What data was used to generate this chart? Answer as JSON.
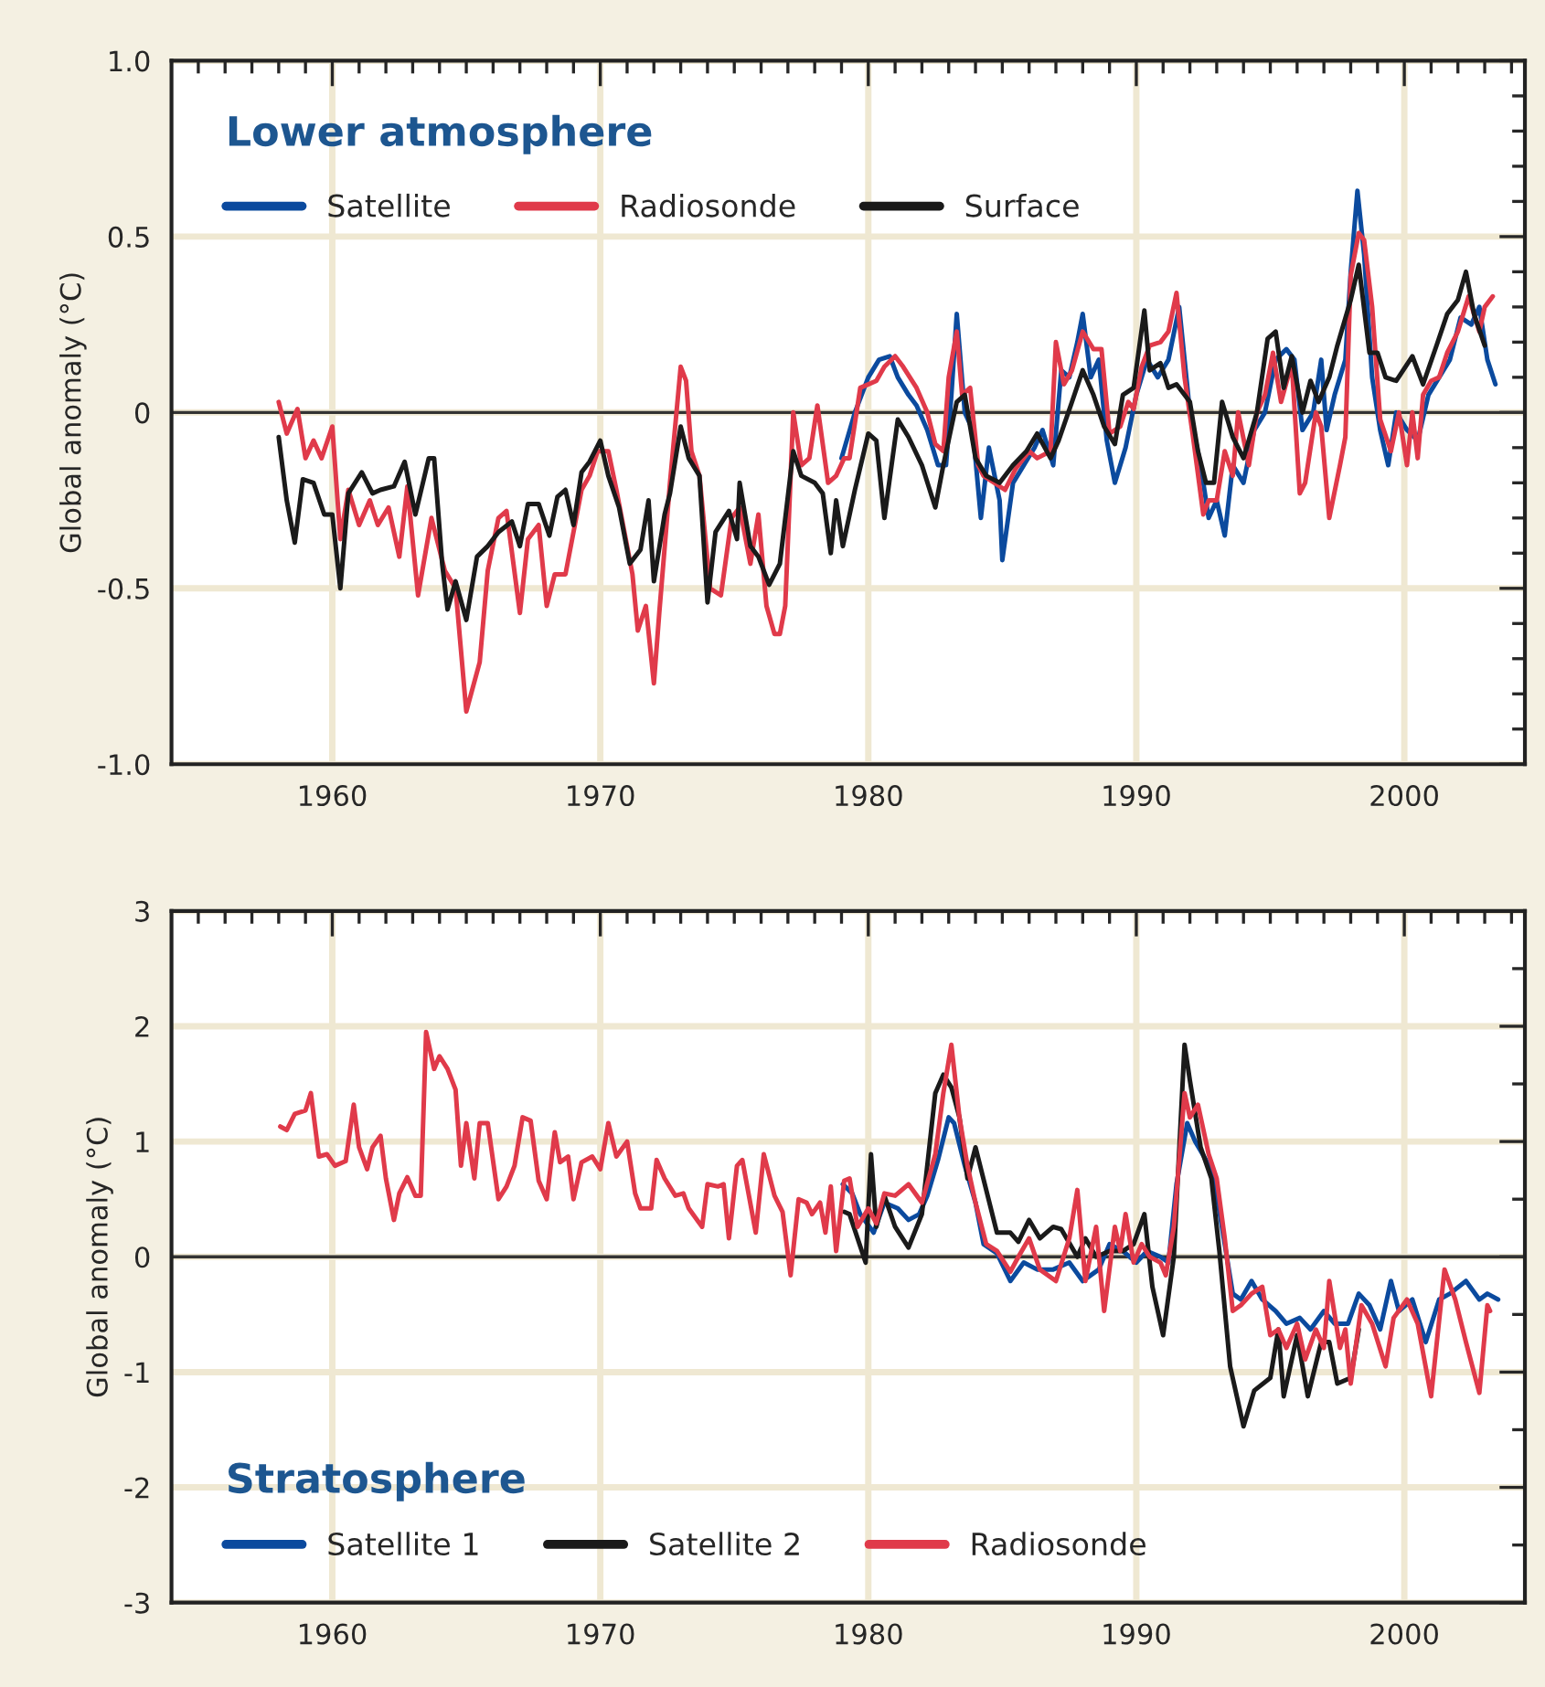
{
  "chart_data": [
    {
      "type": "line",
      "title": "Lower atmosphere",
      "ylabel": "Global anomaly (°C)",
      "legend": "top left",
      "grid": true,
      "marker": "none",
      "line_style": "solid",
      "xlim": [
        1954,
        2004.5
      ],
      "ylim": [
        -1.0,
        1.0
      ],
      "xticks": [
        {
          "value": 1955,
          "label": null
        },
        {
          "value": 1956,
          "label": null
        },
        {
          "value": 1957,
          "label": null
        },
        {
          "value": 1958,
          "label": null
        },
        {
          "value": 1959,
          "label": null
        },
        {
          "value": 1960,
          "label": "1960"
        },
        {
          "value": 1961,
          "label": null
        },
        {
          "value": 1962,
          "label": null
        },
        {
          "value": 1963,
          "label": null
        },
        {
          "value": 1964,
          "label": null
        },
        {
          "value": 1965,
          "label": null
        },
        {
          "value": 1966,
          "label": null
        },
        {
          "value": 1967,
          "label": null
        },
        {
          "value": 1968,
          "label": null
        },
        {
          "value": 1969,
          "label": null
        },
        {
          "value": 1970,
          "label": "1970"
        },
        {
          "value": 1971,
          "label": null
        },
        {
          "value": 1972,
          "label": null
        },
        {
          "value": 1973,
          "label": null
        },
        {
          "value": 1974,
          "label": null
        },
        {
          "value": 1975,
          "label": null
        },
        {
          "value": 1976,
          "label": null
        },
        {
          "value": 1977,
          "label": null
        },
        {
          "value": 1978,
          "label": null
        },
        {
          "value": 1979,
          "label": null
        },
        {
          "value": 1980,
          "label": "1980"
        },
        {
          "value": 1981,
          "label": null
        },
        {
          "value": 1982,
          "label": null
        },
        {
          "value": 1983,
          "label": null
        },
        {
          "value": 1984,
          "label": null
        },
        {
          "value": 1985,
          "label": null
        },
        {
          "value": 1986,
          "label": null
        },
        {
          "value": 1987,
          "label": null
        },
        {
          "value": 1988,
          "label": null
        },
        {
          "value": 1989,
          "label": null
        },
        {
          "value": 1990,
          "label": "1990"
        },
        {
          "value": 1991,
          "label": null
        },
        {
          "value": 1992,
          "label": null
        },
        {
          "value": 1993,
          "label": null
        },
        {
          "value": 1994,
          "label": null
        },
        {
          "value": 1995,
          "label": null
        },
        {
          "value": 1996,
          "label": null
        },
        {
          "value": 1997,
          "label": null
        },
        {
          "value": 1998,
          "label": null
        },
        {
          "value": 1999,
          "label": null
        },
        {
          "value": 2000,
          "label": "2000"
        },
        {
          "value": 2001,
          "label": null
        },
        {
          "value": 2002,
          "label": null
        },
        {
          "value": 2003,
          "label": null
        },
        {
          "value": 2004,
          "label": null
        }
      ],
      "yticks": [
        {
          "value": -1.0,
          "label": "-1.0"
        },
        {
          "value": -0.9,
          "label": null
        },
        {
          "value": -0.8,
          "label": null
        },
        {
          "value": -0.7,
          "label": null
        },
        {
          "value": -0.6,
          "label": null
        },
        {
          "value": -0.5,
          "label": "-0.5"
        },
        {
          "value": -0.4,
          "label": null
        },
        {
          "value": -0.3,
          "label": null
        },
        {
          "value": -0.2,
          "label": null
        },
        {
          "value": -0.1,
          "label": null
        },
        {
          "value": 0,
          "label": "0"
        },
        {
          "value": 0.1,
          "label": null
        },
        {
          "value": 0.2,
          "label": null
        },
        {
          "value": 0.3,
          "label": null
        },
        {
          "value": 0.4,
          "label": null
        },
        {
          "value": 0.5,
          "label": "0.5"
        },
        {
          "value": 0.6,
          "label": null
        },
        {
          "value": 0.7,
          "label": null
        },
        {
          "value": 0.8,
          "label": null
        },
        {
          "value": 0.9,
          "label": null
        },
        {
          "value": 1.0,
          "label": "1.0"
        }
      ],
      "ref_lines": [
        {
          "axis": "y",
          "value": 0,
          "color": "#333333",
          "line_style": "solid"
        }
      ],
      "series": [
        {
          "name": "Satellite",
          "color": "#0b4a9e",
          "x": [
            1979.0,
            1979.5,
            1980.0,
            1980.4,
            1980.8,
            1981.1,
            1981.5,
            1981.8,
            1982.2,
            1982.6,
            1982.9,
            1983.1,
            1983.3,
            1983.6,
            1983.9,
            1984.2,
            1984.5,
            1984.9,
            1985.0,
            1985.4,
            1985.8,
            1986.2,
            1986.5,
            1986.9,
            1987.2,
            1987.5,
            1987.8,
            1988.0,
            1988.3,
            1988.6,
            1988.9,
            1989.2,
            1989.6,
            1990.0,
            1990.4,
            1990.8,
            1991.2,
            1991.6,
            1992.0,
            1992.4,
            1992.7,
            1993.0,
            1993.3,
            1993.6,
            1994.0,
            1994.4,
            1994.8,
            1995.2,
            1995.6,
            1995.9,
            1996.2,
            1996.6,
            1996.9,
            1997.1,
            1997.4,
            1997.8,
            1998.0,
            1998.25,
            1998.5,
            1998.8,
            1999.1,
            1999.4,
            1999.7,
            2000.1,
            2000.5,
            2000.9,
            2001.3,
            2001.7,
            2002.1,
            2002.5,
            2002.8,
            2003.1,
            2003.4
          ],
          "values": [
            -0.13,
            0.0,
            0.1,
            0.15,
            0.16,
            0.1,
            0.05,
            0.02,
            -0.05,
            -0.15,
            -0.15,
            0.05,
            0.28,
            0.0,
            -0.05,
            -0.3,
            -0.1,
            -0.25,
            -0.42,
            -0.2,
            -0.15,
            -0.1,
            -0.05,
            -0.15,
            0.12,
            0.1,
            0.2,
            0.28,
            0.1,
            0.15,
            -0.08,
            -0.2,
            -0.1,
            0.05,
            0.15,
            0.1,
            0.15,
            0.3,
            0.0,
            -0.15,
            -0.3,
            -0.25,
            -0.35,
            -0.15,
            -0.2,
            -0.05,
            0.0,
            0.15,
            0.18,
            0.15,
            -0.05,
            0.0,
            0.15,
            -0.05,
            0.05,
            0.15,
            0.4,
            0.63,
            0.45,
            0.1,
            -0.05,
            -0.15,
            0.0,
            -0.05,
            -0.08,
            0.05,
            0.1,
            0.15,
            0.27,
            0.25,
            0.3,
            0.15,
            0.08
          ]
        },
        {
          "name": "Radiosonde",
          "color": "#e03a4a",
          "x": [
            1958.0,
            1958.3,
            1958.7,
            1959.0,
            1959.3,
            1959.6,
            1960.0,
            1960.3,
            1960.6,
            1961.0,
            1961.4,
            1961.7,
            1962.1,
            1962.5,
            1962.8,
            1963.2,
            1963.7,
            1964.2,
            1964.6,
            1965.0,
            1965.5,
            1965.8,
            1966.2,
            1966.5,
            1967.0,
            1967.3,
            1967.7,
            1968.0,
            1968.3,
            1968.7,
            1969.3,
            1969.6,
            1969.9,
            1970.3,
            1970.6,
            1971.2,
            1971.4,
            1971.7,
            1972.0,
            1972.2,
            1972.6,
            1973.0,
            1973.2,
            1973.4,
            1973.7,
            1974.1,
            1974.5,
            1974.9,
            1975.2,
            1975.6,
            1975.9,
            1976.2,
            1976.5,
            1976.7,
            1976.9,
            1977.2,
            1977.5,
            1977.8,
            1978.1,
            1978.5,
            1978.8,
            1979.1,
            1979.3,
            1979.7,
            1980.3,
            1980.6,
            1981.0,
            1981.3,
            1981.8,
            1982.2,
            1982.5,
            1982.8,
            1983.0,
            1983.3,
            1983.5,
            1983.8,
            1984.1,
            1984.3,
            1985.1,
            1985.5,
            1986.0,
            1986.3,
            1986.8,
            1987.0,
            1987.3,
            1987.6,
            1988.0,
            1988.4,
            1988.7,
            1989.0,
            1989.4,
            1989.7,
            1989.9,
            1990.2,
            1990.5,
            1990.9,
            1991.2,
            1991.5,
            1991.8,
            1992.1,
            1992.5,
            1992.7,
            1993.0,
            1993.3,
            1993.6,
            1993.8,
            1994.2,
            1994.5,
            1994.8,
            1995.1,
            1995.4,
            1995.8,
            1996.1,
            1996.3,
            1996.7,
            1996.9,
            1997.2,
            1997.6,
            1997.8,
            1998.0,
            1998.3,
            1998.5,
            1998.8,
            1999.1,
            1999.5,
            1999.8,
            2000.1,
            2000.3,
            2000.5,
            2000.7,
            2001.0,
            2001.3,
            2001.6,
            2002.0,
            2002.4,
            2002.8,
            2003.0,
            2003.3
          ],
          "values": [
            0.03,
            -0.06,
            0.01,
            -0.13,
            -0.08,
            -0.13,
            -0.04,
            -0.36,
            -0.22,
            -0.32,
            -0.25,
            -0.32,
            -0.27,
            -0.41,
            -0.21,
            -0.52,
            -0.3,
            -0.45,
            -0.5,
            -0.85,
            -0.71,
            -0.45,
            -0.3,
            -0.28,
            -0.57,
            -0.36,
            -0.32,
            -0.55,
            -0.46,
            -0.46,
            -0.22,
            -0.18,
            -0.11,
            -0.11,
            -0.22,
            -0.46,
            -0.62,
            -0.55,
            -0.77,
            -0.57,
            -0.2,
            0.13,
            0.09,
            -0.11,
            -0.18,
            -0.5,
            -0.52,
            -0.3,
            -0.27,
            -0.43,
            -0.29,
            -0.55,
            -0.63,
            -0.63,
            -0.55,
            0.0,
            -0.15,
            -0.13,
            0.02,
            -0.2,
            -0.18,
            -0.13,
            -0.13,
            0.07,
            0.09,
            0.13,
            0.16,
            0.13,
            0.07,
            0.0,
            -0.09,
            -0.11,
            0.1,
            0.23,
            0.05,
            0.07,
            -0.15,
            -0.18,
            -0.22,
            -0.16,
            -0.11,
            -0.13,
            -0.11,
            0.2,
            0.08,
            0.12,
            0.23,
            0.18,
            0.18,
            -0.06,
            -0.04,
            0.03,
            0.01,
            0.13,
            0.19,
            0.2,
            0.23,
            0.34,
            0.1,
            -0.06,
            -0.29,
            -0.25,
            -0.25,
            -0.11,
            -0.18,
            0.0,
            -0.15,
            0.0,
            0.05,
            0.17,
            0.03,
            0.14,
            -0.23,
            -0.2,
            0.0,
            -0.04,
            -0.3,
            -0.15,
            -0.07,
            0.39,
            0.51,
            0.49,
            0.3,
            -0.02,
            -0.11,
            0.0,
            -0.15,
            0.0,
            -0.13,
            0.05,
            0.09,
            0.1,
            0.17,
            0.23,
            0.33,
            0.23,
            0.3,
            0.33
          ]
        },
        {
          "name": "Surface",
          "color": "#1a1a1a",
          "x": [
            1958.0,
            1958.3,
            1958.6,
            1958.9,
            1959.3,
            1959.7,
            1960.0,
            1960.3,
            1960.6,
            1961.1,
            1961.5,
            1961.8,
            1962.3,
            1962.7,
            1963.1,
            1963.6,
            1963.8,
            1964.1,
            1964.3,
            1964.6,
            1965.0,
            1965.4,
            1965.8,
            1966.2,
            1966.7,
            1967.0,
            1967.3,
            1967.7,
            1968.1,
            1968.4,
            1968.7,
            1969.0,
            1969.3,
            1969.6,
            1970.0,
            1970.3,
            1970.7,
            1971.1,
            1971.5,
            1971.8,
            1972.0,
            1972.4,
            1972.6,
            1973.0,
            1973.3,
            1973.7,
            1974.0,
            1974.3,
            1974.8,
            1975.1,
            1975.2,
            1975.6,
            1975.9,
            1976.3,
            1976.7,
            1977.2,
            1977.5,
            1978.0,
            1978.3,
            1978.6,
            1978.8,
            1979.05,
            1979.5,
            1980.0,
            1980.3,
            1980.6,
            1981.1,
            1981.5,
            1982.0,
            1982.5,
            1982.8,
            1983.3,
            1983.6,
            1984.0,
            1984.4,
            1984.9,
            1985.4,
            1985.9,
            1986.3,
            1986.8,
            1987.1,
            1987.6,
            1988.0,
            1988.4,
            1988.8,
            1989.2,
            1989.5,
            1989.9,
            1990.3,
            1990.5,
            1990.9,
            1991.2,
            1991.5,
            1992.0,
            1992.3,
            1992.6,
            1992.9,
            1993.2,
            1993.6,
            1994.0,
            1994.5,
            1994.9,
            1995.2,
            1995.5,
            1995.8,
            1996.2,
            1996.5,
            1996.8,
            1997.2,
            1997.5,
            1998.0,
            1998.3,
            1998.7,
            1999.0,
            1999.3,
            1999.7,
            2000.3,
            2000.7,
            2001.2,
            2001.6,
            2002.0,
            2002.3,
            2002.6,
            2003.0
          ],
          "values": [
            -0.07,
            -0.25,
            -0.37,
            -0.19,
            -0.2,
            -0.29,
            -0.29,
            -0.5,
            -0.23,
            -0.17,
            -0.23,
            -0.22,
            -0.21,
            -0.14,
            -0.29,
            -0.13,
            -0.13,
            -0.43,
            -0.56,
            -0.48,
            -0.59,
            -0.41,
            -0.38,
            -0.34,
            -0.31,
            -0.38,
            -0.26,
            -0.26,
            -0.35,
            -0.24,
            -0.22,
            -0.32,
            -0.17,
            -0.14,
            -0.08,
            -0.18,
            -0.27,
            -0.43,
            -0.39,
            -0.25,
            -0.48,
            -0.29,
            -0.23,
            -0.04,
            -0.13,
            -0.18,
            -0.54,
            -0.34,
            -0.28,
            -0.36,
            -0.2,
            -0.38,
            -0.41,
            -0.49,
            -0.43,
            -0.11,
            -0.18,
            -0.2,
            -0.23,
            -0.4,
            -0.25,
            -0.38,
            -0.22,
            -0.06,
            -0.08,
            -0.3,
            -0.02,
            -0.07,
            -0.15,
            -0.27,
            -0.15,
            0.03,
            0.05,
            -0.13,
            -0.18,
            -0.2,
            -0.15,
            -0.11,
            -0.06,
            -0.13,
            -0.08,
            0.03,
            0.12,
            0.05,
            -0.04,
            -0.09,
            0.05,
            0.07,
            0.29,
            0.12,
            0.14,
            0.07,
            0.08,
            0.03,
            -0.11,
            -0.2,
            -0.2,
            0.03,
            -0.07,
            -0.13,
            0.0,
            0.21,
            0.23,
            0.07,
            0.16,
            0.0,
            0.09,
            0.03,
            0.1,
            0.19,
            0.32,
            0.42,
            0.17,
            0.17,
            0.1,
            0.09,
            0.16,
            0.08,
            0.19,
            0.28,
            0.32,
            0.4,
            0.28,
            0.19
          ]
        }
      ]
    },
    {
      "type": "line",
      "title": "Stratosphere",
      "ylabel": "Global anomaly (°C)",
      "legend": "bottom left",
      "grid": true,
      "marker": "none",
      "line_style": "solid",
      "xlim": [
        1954,
        2004.5
      ],
      "ylim": [
        -3,
        3
      ],
      "xticks": [
        {
          "value": 1955,
          "label": null
        },
        {
          "value": 1956,
          "label": null
        },
        {
          "value": 1957,
          "label": null
        },
        {
          "value": 1958,
          "label": null
        },
        {
          "value": 1959,
          "label": null
        },
        {
          "value": 1960,
          "label": "1960"
        },
        {
          "value": 1961,
          "label": null
        },
        {
          "value": 1962,
          "label": null
        },
        {
          "value": 1963,
          "label": null
        },
        {
          "value": 1964,
          "label": null
        },
        {
          "value": 1965,
          "label": null
        },
        {
          "value": 1966,
          "label": null
        },
        {
          "value": 1967,
          "label": null
        },
        {
          "value": 1968,
          "label": null
        },
        {
          "value": 1969,
          "label": null
        },
        {
          "value": 1970,
          "label": "1970"
        },
        {
          "value": 1971,
          "label": null
        },
        {
          "value": 1972,
          "label": null
        },
        {
          "value": 1973,
          "label": null
        },
        {
          "value": 1974,
          "label": null
        },
        {
          "value": 1975,
          "label": null
        },
        {
          "value": 1976,
          "label": null
        },
        {
          "value": 1977,
          "label": null
        },
        {
          "value": 1978,
          "label": null
        },
        {
          "value": 1979,
          "label": null
        },
        {
          "value": 1980,
          "label": "1980"
        },
        {
          "value": 1981,
          "label": null
        },
        {
          "value": 1982,
          "label": null
        },
        {
          "value": 1983,
          "label": null
        },
        {
          "value": 1984,
          "label": null
        },
        {
          "value": 1985,
          "label": null
        },
        {
          "value": 1986,
          "label": null
        },
        {
          "value": 1987,
          "label": null
        },
        {
          "value": 1988,
          "label": null
        },
        {
          "value": 1989,
          "label": null
        },
        {
          "value": 1990,
          "label": "1990"
        },
        {
          "value": 1991,
          "label": null
        },
        {
          "value": 1992,
          "label": null
        },
        {
          "value": 1993,
          "label": null
        },
        {
          "value": 1994,
          "label": null
        },
        {
          "value": 1995,
          "label": null
        },
        {
          "value": 1996,
          "label": null
        },
        {
          "value": 1997,
          "label": null
        },
        {
          "value": 1998,
          "label": null
        },
        {
          "value": 1999,
          "label": null
        },
        {
          "value": 2000,
          "label": "2000"
        },
        {
          "value": 2001,
          "label": null
        },
        {
          "value": 2002,
          "label": null
        },
        {
          "value": 2003,
          "label": null
        },
        {
          "value": 2004,
          "label": null
        }
      ],
      "yticks": [
        {
          "value": -3,
          "label": "-3"
        },
        {
          "value": -2.5,
          "label": null
        },
        {
          "value": -2,
          "label": "-2"
        },
        {
          "value": -1.5,
          "label": null
        },
        {
          "value": -1,
          "label": "-1"
        },
        {
          "value": -0.5,
          "label": null
        },
        {
          "value": 0,
          "label": "0"
        },
        {
          "value": 0.5,
          "label": null
        },
        {
          "value": 1,
          "label": "1"
        },
        {
          "value": 1.5,
          "label": null
        },
        {
          "value": 2,
          "label": "2"
        },
        {
          "value": 2.5,
          "label": null
        },
        {
          "value": 3,
          "label": "3"
        }
      ],
      "ref_lines": [
        {
          "axis": "y",
          "value": 0,
          "color": "#333333",
          "line_style": "solid"
        }
      ],
      "series": [
        {
          "name": "Satellite 1",
          "color": "#0b4a9e",
          "x": [
            1979.05,
            1979.4,
            1979.7,
            1980.2,
            1980.6,
            1981.1,
            1981.5,
            1981.9,
            1982.2,
            1982.6,
            1983.0,
            1983.2,
            1983.6,
            1984.0,
            1984.3,
            1984.8,
            1985.3,
            1985.8,
            1986.3,
            1986.9,
            1987.5,
            1988.0,
            1988.6,
            1989.0,
            1989.5,
            1990.0,
            1990.4,
            1990.9,
            1991.2,
            1991.5,
            1991.9,
            1992.2,
            1992.6,
            1992.9,
            1993.3,
            1993.6,
            1993.9,
            1994.3,
            1994.7,
            1995.2,
            1995.6,
            1996.1,
            1996.5,
            1997.0,
            1997.4,
            1997.9,
            1998.3,
            1998.7,
            1999.1,
            1999.5,
            1999.8,
            2000.3,
            2000.8,
            2001.3,
            2001.7,
            2002.3,
            2002.8,
            2003.1,
            2003.5
          ],
          "values": [
            0.63,
            0.55,
            0.37,
            0.21,
            0.47,
            0.42,
            0.32,
            0.37,
            0.53,
            0.84,
            1.21,
            1.16,
            0.79,
            0.47,
            0.11,
            0.03,
            -0.21,
            -0.05,
            -0.11,
            -0.11,
            -0.05,
            -0.21,
            -0.11,
            0.11,
            0.05,
            -0.05,
            0.05,
            0.0,
            -0.05,
            0.63,
            1.16,
            1.0,
            0.84,
            0.68,
            0.11,
            -0.32,
            -0.37,
            -0.21,
            -0.37,
            -0.47,
            -0.58,
            -0.53,
            -0.63,
            -0.47,
            -0.58,
            -0.58,
            -0.32,
            -0.42,
            -0.63,
            -0.21,
            -0.47,
            -0.37,
            -0.74,
            -0.37,
            -0.32,
            -0.21,
            -0.37,
            -0.32,
            -0.37
          ]
        },
        {
          "name": "Satellite 2",
          "color": "#1a1a1a",
          "x": [
            1979.1,
            1979.3,
            1979.9,
            1980.1,
            1980.3,
            1980.6,
            1981.0,
            1981.5,
            1982.0,
            1982.5,
            1982.8,
            1983.1,
            1983.4,
            1983.7,
            1984.0,
            1984.4,
            1984.8,
            1985.3,
            1985.6,
            1986.0,
            1986.4,
            1986.9,
            1987.2,
            1987.8,
            1988.1,
            1988.5,
            1989.0,
            1989.5,
            1989.9,
            1990.3,
            1990.6,
            1991.0,
            1991.4,
            1991.8,
            1992.0,
            1992.4,
            1992.8,
            1993.1,
            1993.5,
            1994.0,
            1994.4,
            1995.0,
            1995.3,
            1995.5,
            1996.0,
            1996.4,
            1996.9,
            1997.2,
            1997.5,
            1998.0,
            1998.3
          ],
          "values": [
            0.39,
            0.37,
            -0.05,
            0.89,
            0.26,
            0.53,
            0.26,
            0.08,
            0.37,
            1.42,
            1.58,
            1.47,
            1.21,
            0.68,
            0.95,
            0.58,
            0.21,
            0.21,
            0.13,
            0.32,
            0.16,
            0.26,
            0.24,
            0.0,
            0.16,
            0.0,
            0.05,
            0.05,
            0.11,
            0.37,
            -0.26,
            -0.68,
            0.0,
            1.84,
            1.53,
            0.95,
            0.68,
            0.05,
            -0.95,
            -1.47,
            -1.16,
            -1.05,
            -0.63,
            -1.21,
            -0.68,
            -1.21,
            -0.74,
            -0.74,
            -1.1,
            -1.05,
            -0.63
          ]
        },
        {
          "name": "Radiosonde",
          "color": "#e03a4a",
          "x": [
            1958.06,
            1958.3,
            1958.6,
            1959.0,
            1959.2,
            1959.5,
            1959.8,
            1960.1,
            1960.5,
            1960.8,
            1961.0,
            1961.3,
            1961.5,
            1961.8,
            1962.0,
            1962.3,
            1962.5,
            1962.8,
            1963.1,
            1963.3,
            1963.5,
            1963.8,
            1964.0,
            1964.3,
            1964.6,
            1964.8,
            1965.0,
            1965.3,
            1965.5,
            1965.8,
            1966.2,
            1966.5,
            1966.8,
            1967.1,
            1967.4,
            1967.7,
            1968.0,
            1968.3,
            1968.5,
            1968.8,
            1969.0,
            1969.3,
            1969.7,
            1970.0,
            1970.3,
            1970.6,
            1971.0,
            1971.3,
            1971.5,
            1971.9,
            1972.1,
            1972.4,
            1972.8,
            1973.1,
            1973.3,
            1973.8,
            1974.0,
            1974.4,
            1974.6,
            1974.8,
            1975.1,
            1975.3,
            1975.8,
            1976.1,
            1976.5,
            1976.8,
            1977.1,
            1977.4,
            1977.7,
            1977.9,
            1978.2,
            1978.4,
            1978.6,
            1978.8,
            1979.1,
            1979.3,
            1979.6,
            1980.0,
            1980.3,
            1980.6,
            1981.0,
            1981.5,
            1982.0,
            1982.5,
            1982.8,
            1983.1,
            1983.4,
            1983.7,
            1984.0,
            1984.4,
            1984.8,
            1985.3,
            1985.6,
            1986.0,
            1986.4,
            1987.0,
            1987.5,
            1987.8,
            1988.1,
            1988.5,
            1988.8,
            1989.2,
            1989.4,
            1989.6,
            1989.9,
            1990.2,
            1990.5,
            1990.9,
            1991.1,
            1991.4,
            1991.8,
            1992.0,
            1992.3,
            1992.7,
            1993.0,
            1993.3,
            1993.6,
            1993.9,
            1994.3,
            1994.7,
            1995.0,
            1995.3,
            1995.6,
            1996.0,
            1996.3,
            1996.7,
            1997.0,
            1997.2,
            1997.6,
            1997.8,
            1998.0,
            1998.4,
            1998.8,
            1999.3,
            1999.6,
            2000.1,
            2000.5,
            2001.0,
            2001.5,
            2001.9,
            2002.3,
            2002.8,
            2003.1,
            2003.2
          ],
          "values": [
            1.13,
            1.1,
            1.24,
            1.27,
            1.42,
            0.87,
            0.89,
            0.79,
            0.83,
            1.32,
            0.95,
            0.76,
            0.95,
            1.05,
            0.68,
            0.32,
            0.55,
            0.69,
            0.53,
            0.53,
            1.95,
            1.63,
            1.74,
            1.63,
            1.45,
            0.79,
            1.16,
            0.68,
            1.16,
            1.16,
            0.5,
            0.61,
            0.79,
            1.21,
            1.18,
            0.66,
            0.5,
            1.08,
            0.82,
            0.87,
            0.5,
            0.82,
            0.87,
            0.76,
            1.16,
            0.87,
            1.0,
            0.55,
            0.42,
            0.42,
            0.84,
            0.68,
            0.53,
            0.55,
            0.42,
            0.26,
            0.63,
            0.61,
            0.63,
            0.16,
            0.79,
            0.84,
            0.21,
            0.89,
            0.53,
            0.39,
            -0.16,
            0.5,
            0.47,
            0.37,
            0.47,
            0.21,
            0.61,
            0.05,
            0.66,
            0.68,
            0.26,
            0.42,
            0.29,
            0.55,
            0.53,
            0.63,
            0.47,
            0.89,
            1.42,
            1.84,
            1.21,
            0.79,
            0.47,
            0.11,
            0.05,
            -0.13,
            0.0,
            0.16,
            -0.11,
            -0.21,
            0.16,
            0.58,
            -0.21,
            0.26,
            -0.47,
            0.26,
            0.05,
            0.37,
            -0.05,
            0.11,
            0.0,
            -0.05,
            -0.16,
            0.26,
            1.42,
            1.21,
            1.32,
            0.89,
            0.68,
            0.16,
            -0.47,
            -0.42,
            -0.32,
            -0.26,
            -0.68,
            -0.63,
            -0.79,
            -0.58,
            -0.89,
            -0.63,
            -0.79,
            -0.21,
            -0.79,
            -0.63,
            -1.1,
            -0.42,
            -0.58,
            -0.95,
            -0.53,
            -0.37,
            -0.58,
            -1.21,
            -0.11,
            -0.37,
            -0.74,
            -1.18,
            -0.42,
            -0.47
          ]
        }
      ]
    }
  ]
}
